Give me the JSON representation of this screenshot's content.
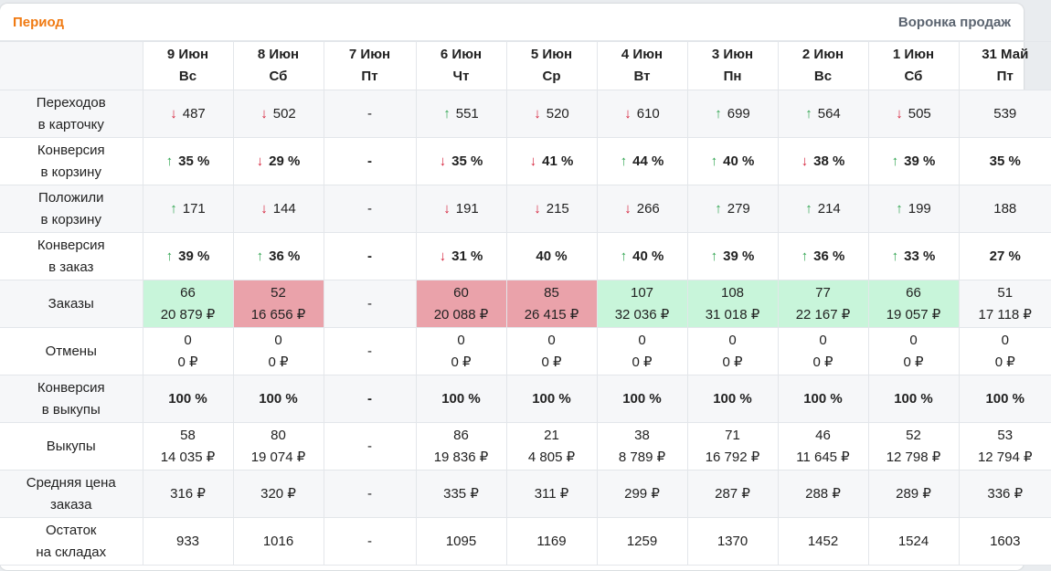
{
  "header": {
    "title": "Период",
    "right_title": "Воронка продаж"
  },
  "columns": [
    {
      "date": "9 Июн",
      "day": "Вс"
    },
    {
      "date": "8 Июн",
      "day": "Сб"
    },
    {
      "date": "7 Июн",
      "day": "Пт"
    },
    {
      "date": "6 Июн",
      "day": "Чт"
    },
    {
      "date": "5 Июн",
      "day": "Ср"
    },
    {
      "date": "4 Июн",
      "day": "Вт"
    },
    {
      "date": "3 Июн",
      "day": "Пн"
    },
    {
      "date": "2 Июн",
      "day": "Вс"
    },
    {
      "date": "1 Июн",
      "day": "Сб"
    },
    {
      "date": "31 Май",
      "day": "Пт"
    }
  ],
  "colors": {
    "up": "#2fa44f",
    "down": "#d5223b",
    "green_bg": "#c8f5da",
    "red_bg": "#eaa2aa",
    "accent": "#f07a12"
  },
  "rows": [
    {
      "label": [
        "Переходов",
        "в карточку"
      ],
      "bold": false,
      "cells": [
        {
          "l1": "487",
          "arrow": "down"
        },
        {
          "l1": "502",
          "arrow": "down"
        },
        {
          "l1": "-"
        },
        {
          "l1": "551",
          "arrow": "up"
        },
        {
          "l1": "520",
          "arrow": "down"
        },
        {
          "l1": "610",
          "arrow": "down"
        },
        {
          "l1": "699",
          "arrow": "up"
        },
        {
          "l1": "564",
          "arrow": "up"
        },
        {
          "l1": "505",
          "arrow": "down"
        },
        {
          "l1": "539"
        }
      ]
    },
    {
      "label": [
        "Конверсия",
        "в корзину"
      ],
      "bold": true,
      "cells": [
        {
          "l1": "35 %",
          "arrow": "up"
        },
        {
          "l1": "29 %",
          "arrow": "down"
        },
        {
          "l1": "-"
        },
        {
          "l1": "35 %",
          "arrow": "down"
        },
        {
          "l1": "41 %",
          "arrow": "down"
        },
        {
          "l1": "44 %",
          "arrow": "up"
        },
        {
          "l1": "40 %",
          "arrow": "up"
        },
        {
          "l1": "38 %",
          "arrow": "down"
        },
        {
          "l1": "39 %",
          "arrow": "up"
        },
        {
          "l1": "35 %"
        }
      ]
    },
    {
      "label": [
        "Положили",
        "в корзину"
      ],
      "bold": false,
      "cells": [
        {
          "l1": "171",
          "arrow": "up"
        },
        {
          "l1": "144",
          "arrow": "down"
        },
        {
          "l1": "-"
        },
        {
          "l1": "191",
          "arrow": "down"
        },
        {
          "l1": "215",
          "arrow": "down"
        },
        {
          "l1": "266",
          "arrow": "down"
        },
        {
          "l1": "279",
          "arrow": "up"
        },
        {
          "l1": "214",
          "arrow": "up"
        },
        {
          "l1": "199",
          "arrow": "up"
        },
        {
          "l1": "188"
        }
      ]
    },
    {
      "label": [
        "Конверсия",
        "в заказ"
      ],
      "bold": true,
      "cells": [
        {
          "l1": "39 %",
          "arrow": "up"
        },
        {
          "l1": "36 %",
          "arrow": "up"
        },
        {
          "l1": "-"
        },
        {
          "l1": "31 %",
          "arrow": "down"
        },
        {
          "l1": "40 %"
        },
        {
          "l1": "40 %",
          "arrow": "up"
        },
        {
          "l1": "39 %",
          "arrow": "up"
        },
        {
          "l1": "36 %",
          "arrow": "up"
        },
        {
          "l1": "33 %",
          "arrow": "up"
        },
        {
          "l1": "27 %"
        }
      ]
    },
    {
      "label": [
        "Заказы"
      ],
      "bold": false,
      "cells": [
        {
          "l1": "66",
          "l2": "20 879 ₽",
          "bg": "green"
        },
        {
          "l1": "52",
          "l2": "16 656 ₽",
          "bg": "red"
        },
        {
          "l1": "-"
        },
        {
          "l1": "60",
          "l2": "20 088 ₽",
          "bg": "red"
        },
        {
          "l1": "85",
          "l2": "26 415 ₽",
          "bg": "red"
        },
        {
          "l1": "107",
          "l2": "32 036 ₽",
          "bg": "green"
        },
        {
          "l1": "108",
          "l2": "31 018 ₽",
          "bg": "green"
        },
        {
          "l1": "77",
          "l2": "22 167 ₽",
          "bg": "green"
        },
        {
          "l1": "66",
          "l2": "19 057 ₽",
          "bg": "green"
        },
        {
          "l1": "51",
          "l2": "17 118 ₽"
        }
      ]
    },
    {
      "label": [
        "Отмены"
      ],
      "bold": false,
      "cells": [
        {
          "l1": "0",
          "l2": "0 ₽"
        },
        {
          "l1": "0",
          "l2": "0 ₽"
        },
        {
          "l1": "-"
        },
        {
          "l1": "0",
          "l2": "0 ₽"
        },
        {
          "l1": "0",
          "l2": "0 ₽"
        },
        {
          "l1": "0",
          "l2": "0 ₽"
        },
        {
          "l1": "0",
          "l2": "0 ₽"
        },
        {
          "l1": "0",
          "l2": "0 ₽"
        },
        {
          "l1": "0",
          "l2": "0 ₽"
        },
        {
          "l1": "0",
          "l2": "0 ₽"
        }
      ]
    },
    {
      "label": [
        "Конверсия",
        "в выкупы"
      ],
      "bold": true,
      "cells": [
        {
          "l1": "100 %"
        },
        {
          "l1": "100 %"
        },
        {
          "l1": "-"
        },
        {
          "l1": "100 %"
        },
        {
          "l1": "100 %"
        },
        {
          "l1": "100 %"
        },
        {
          "l1": "100 %"
        },
        {
          "l1": "100 %"
        },
        {
          "l1": "100 %"
        },
        {
          "l1": "100 %"
        }
      ]
    },
    {
      "label": [
        "Выкупы"
      ],
      "bold": false,
      "cells": [
        {
          "l1": "58",
          "l2": "14 035 ₽"
        },
        {
          "l1": "80",
          "l2": "19 074 ₽"
        },
        {
          "l1": "-"
        },
        {
          "l1": "86",
          "l2": "19 836 ₽"
        },
        {
          "l1": "21",
          "l2": "4 805 ₽"
        },
        {
          "l1": "38",
          "l2": "8 789 ₽"
        },
        {
          "l1": "71",
          "l2": "16 792 ₽"
        },
        {
          "l1": "46",
          "l2": "11 645 ₽"
        },
        {
          "l1": "52",
          "l2": "12 798 ₽"
        },
        {
          "l1": "53",
          "l2": "12 794 ₽"
        }
      ]
    },
    {
      "label": [
        "Средняя цена",
        "заказа"
      ],
      "bold": false,
      "cells": [
        {
          "l1": "316 ₽"
        },
        {
          "l1": "320 ₽"
        },
        {
          "l1": "-"
        },
        {
          "l1": "335 ₽"
        },
        {
          "l1": "311 ₽"
        },
        {
          "l1": "299 ₽"
        },
        {
          "l1": "287 ₽"
        },
        {
          "l1": "288 ₽"
        },
        {
          "l1": "289 ₽"
        },
        {
          "l1": "336 ₽"
        }
      ]
    },
    {
      "label": [
        "Остаток",
        "на складах"
      ],
      "bold": false,
      "cells": [
        {
          "l1": "933"
        },
        {
          "l1": "1016"
        },
        {
          "l1": "-"
        },
        {
          "l1": "1095"
        },
        {
          "l1": "1169"
        },
        {
          "l1": "1259"
        },
        {
          "l1": "1370"
        },
        {
          "l1": "1452"
        },
        {
          "l1": "1524"
        },
        {
          "l1": "1603"
        }
      ]
    }
  ]
}
